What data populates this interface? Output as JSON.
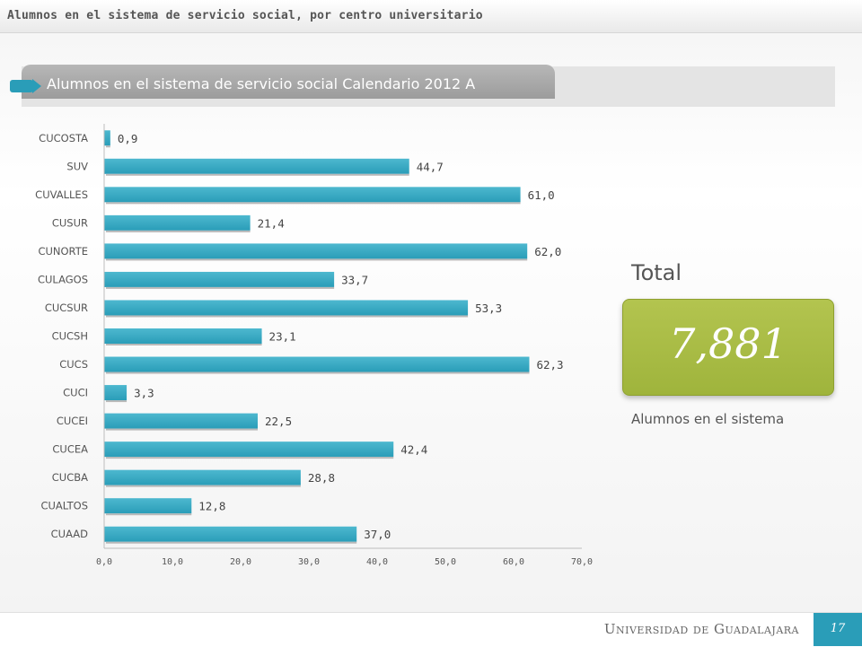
{
  "header": {
    "title": "Alumnos en el sistema de servicio social, por centro universitario"
  },
  "section": {
    "title": "Alumnos en el sistema de servicio social Calendario 2012 A"
  },
  "chart_data": {
    "type": "bar",
    "orientation": "horizontal",
    "categories": [
      "CUCOSTA",
      "SUV",
      "CUVALLES",
      "CUSUR",
      "CUNORTE",
      "CULAGOS",
      "CUCSUR",
      "CUCSH",
      "CUCS",
      "CUCI",
      "CUCEI",
      "CUCEA",
      "CUCBA",
      "CUALTOS",
      "CUAAD"
    ],
    "values": [
      0.9,
      44.7,
      61.0,
      21.4,
      62.0,
      33.7,
      53.3,
      23.1,
      62.3,
      3.3,
      22.5,
      42.4,
      28.8,
      12.8,
      37.0
    ],
    "value_labels": [
      "0,9",
      "44,7",
      "61,0",
      "21,4",
      "62,0",
      "33,7",
      "53,3",
      "23,1",
      "62,3",
      "3,3",
      "22,5",
      "42,4",
      "28,8",
      "12,8",
      "37,0"
    ],
    "xlim": [
      0,
      70
    ],
    "xticks": [
      0,
      10,
      20,
      30,
      40,
      50,
      60,
      70
    ],
    "xtick_labels": [
      "0,0",
      "10,0",
      "20,0",
      "30,0",
      "40,0",
      "50,0",
      "60,0",
      "70,0"
    ],
    "title": "",
    "xlabel": "",
    "ylabel": "",
    "grid": false,
    "bar_color": "#2a9db8"
  },
  "total": {
    "label": "Total",
    "value": "7,881",
    "caption": "Alumnos en el sistema",
    "box_color": "#a8bc44"
  },
  "footer": {
    "logo_text": "Universidad de Guadalajara",
    "page_number": "17"
  }
}
